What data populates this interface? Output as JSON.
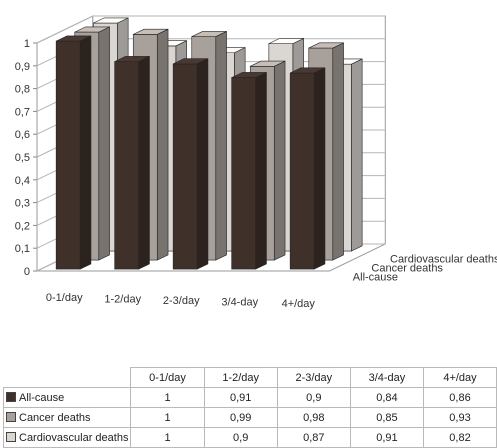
{
  "chart_data": {
    "type": "bar",
    "categories": [
      "0-1/day",
      "1-2/day",
      "2-3/day",
      "3/4-day",
      "4+/day"
    ],
    "series": [
      {
        "name": "All-cause",
        "values": [
          1,
          0.91,
          0.9,
          0.84,
          0.86
        ],
        "color": "#3f302a"
      },
      {
        "name": "Cancer deaths",
        "values": [
          1,
          0.99,
          0.98,
          0.85,
          0.93
        ],
        "color": "#a8a09a"
      },
      {
        "name": "Cardiovascular deaths",
        "values": [
          1,
          0.9,
          0.87,
          0.91,
          0.82
        ],
        "color": "#dad6d2"
      }
    ],
    "yticks": [
      "0",
      "0,1",
      "0,2",
      "0,3",
      "0,4",
      "0,5",
      "0,6",
      "0,7",
      "0,8",
      "0,9",
      "1"
    ],
    "ylim": [
      0,
      1
    ],
    "grid": true,
    "three_d": true,
    "data_table": true
  },
  "table": {
    "headers": [
      "0-1/day",
      "1-2/day",
      "2-3/day",
      "3/4-day",
      "4+/day"
    ],
    "rows": [
      {
        "label": "All-cause",
        "color": "#3f302a",
        "values": [
          "1",
          "0,91",
          "0,9",
          "0,84",
          "0,86"
        ]
      },
      {
        "label": "Cancer deaths",
        "color": "#a8a09a",
        "values": [
          "1",
          "0,99",
          "0,98",
          "0,85",
          "0,93"
        ]
      },
      {
        "label": "Cardiovascular deaths",
        "color": "#dad6d2",
        "values": [
          "1",
          "0,9",
          "0,87",
          "0,91",
          "0,82"
        ]
      }
    ]
  }
}
